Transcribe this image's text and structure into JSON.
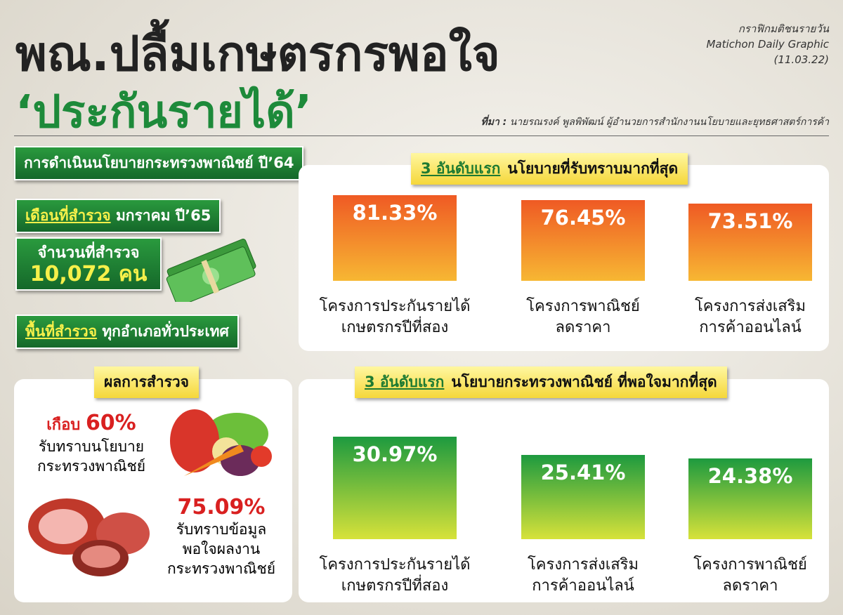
{
  "header": {
    "title": "พณ.ปลื้มเกษตรกรพอใจ",
    "subtitle": "‘ประกันรายได้’",
    "credit": [
      "กราฟิกมติชนรายวัน",
      "Matichon Daily Graphic",
      "(11.03.22)"
    ],
    "source_label": "ที่มา :",
    "source": "นายรณรงค์ พูลพิพัฒน์ ผู้อำนวยการสำนักงานนโยบายและยุทธศาสตร์การค้า"
  },
  "info": {
    "banner": "การดำเนินนโยบายกระทรวงพาณิชย์ ปี’64",
    "month_label": "เดือนที่สำรวจ",
    "month": "มกราคม ปี’65",
    "sample_label": "จำนวนที่สำรวจ",
    "sample": "10,072 คน",
    "area_label": "พื้นที่สำรวจ",
    "area": "ทุกอำเภอทั่วประเทศ"
  },
  "results": {
    "title": "ผลการสำรวจ",
    "stat1_prefix": "เกือบ",
    "stat1_value": "60%",
    "stat1_text": "รับทราบนโยบาย\nกระทรวงพาณิชย์",
    "stat2_value": "75.09%",
    "stat2_text": "รับทราบข้อมูล\nพอใจผลงาน\nกระทรวงพาณิชย์"
  },
  "chart_data": [
    {
      "type": "bar",
      "title_highlight": "3 อันดับแรก",
      "title": "นโยบายที่รับทราบมากที่สุด",
      "categories": [
        "โครงการประกันรายได้\nเกษตรกรปีที่สอง",
        "โครงการพาณิชย์\nลดราคา",
        "โครงการส่งเสริม\nการค้าออนไลน์"
      ],
      "values": [
        81.33,
        76.45,
        73.51
      ],
      "value_labels": [
        "81.33%",
        "76.45%",
        "73.51%"
      ],
      "color": [
        "#ef5a24",
        "#f7b733"
      ]
    },
    {
      "type": "bar",
      "title_highlight": "3 อันดับแรก",
      "title": "นโยบายกระทรวงพาณิชย์ ที่พอใจมากที่สุด",
      "categories": [
        "โครงการประกันรายได้\nเกษตรกรปีที่สอง",
        "โครงการส่งเสริม\nการค้าออนไลน์",
        "โครงการพาณิชย์\nลดราคา"
      ],
      "values": [
        30.97,
        25.41,
        24.38
      ],
      "value_labels": [
        "30.97%",
        "25.41%",
        "24.38%"
      ],
      "color": [
        "#1d9a3f",
        "#d7e23a"
      ]
    }
  ]
}
